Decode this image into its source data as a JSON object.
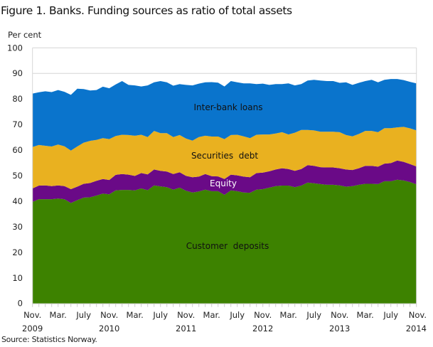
{
  "chart_data": {
    "type": "area",
    "stacked": true,
    "title": "Figure 1. Banks. Funding sources as ratio of total assets",
    "ylabel": "Per cent",
    "source": "Source: Statistics Norway.",
    "ylim": [
      0,
      100
    ],
    "y_ticks": [
      "0",
      "10",
      "20",
      "30",
      "40",
      "50",
      "60",
      "70",
      "80",
      "90",
      "100"
    ],
    "x_ticks": [
      {
        "month": "Nov.",
        "year": "2009",
        "index": 0
      },
      {
        "month": "Mar.",
        "year": "",
        "index": 4
      },
      {
        "month": "July",
        "year": "",
        "index": 8
      },
      {
        "month": "Nov.",
        "year": "2010",
        "index": 12
      },
      {
        "month": "Mar.",
        "year": "",
        "index": 16
      },
      {
        "month": "July",
        "year": "",
        "index": 20
      },
      {
        "month": "Nov.",
        "year": "2011",
        "index": 24
      },
      {
        "month": "Mar.",
        "year": "",
        "index": 28
      },
      {
        "month": "July",
        "year": "",
        "index": 32
      },
      {
        "month": "Nov.",
        "year": "2012",
        "index": 36
      },
      {
        "month": "Mar.",
        "year": "",
        "index": 40
      },
      {
        "month": "July",
        "year": "",
        "index": 44
      },
      {
        "month": "Nov.",
        "year": "2013",
        "index": 48
      },
      {
        "month": "Mar.",
        "year": "",
        "index": 52
      },
      {
        "month": "July",
        "year": "",
        "index": 56
      },
      {
        "month": "Nov.",
        "year": "2014",
        "index": 60
      }
    ],
    "x": [
      "2009-11",
      "2009-12",
      "2010-01",
      "2010-02",
      "2010-03",
      "2010-04",
      "2010-05",
      "2010-06",
      "2010-07",
      "2010-08",
      "2010-09",
      "2010-10",
      "2010-11",
      "2010-12",
      "2011-01",
      "2011-02",
      "2011-03",
      "2011-04",
      "2011-05",
      "2011-06",
      "2011-07",
      "2011-08",
      "2011-09",
      "2011-10",
      "2011-11",
      "2011-12",
      "2012-01",
      "2012-02",
      "2012-03",
      "2012-04",
      "2012-05",
      "2012-06",
      "2012-07",
      "2012-08",
      "2012-09",
      "2012-10",
      "2012-11",
      "2012-12",
      "2013-01",
      "2013-02",
      "2013-03",
      "2013-04",
      "2013-05",
      "2013-06",
      "2013-07",
      "2013-08",
      "2013-09",
      "2013-10",
      "2013-11",
      "2013-12",
      "2014-01",
      "2014-02",
      "2014-03",
      "2014-04",
      "2014-05",
      "2014-06",
      "2014-07",
      "2014-08",
      "2014-09",
      "2014-10",
      "2014-11"
    ],
    "grid": "horizontal at 90 and 100",
    "series": [
      {
        "name": "Customer  deposits",
        "color": "#3d8200",
        "label_color": "#111111",
        "values": [
          39.7,
          40.8,
          40.8,
          40.8,
          41.0,
          40.8,
          39.3,
          40.4,
          41.4,
          41.5,
          42.2,
          43.0,
          42.7,
          44.2,
          44.4,
          44.4,
          44.2,
          45.0,
          44.3,
          46.2,
          45.8,
          45.5,
          44.5,
          45.3,
          44.1,
          43.4,
          43.8,
          44.5,
          43.9,
          43.9,
          42.5,
          44.2,
          43.9,
          43.4,
          43.3,
          44.5,
          44.7,
          45.3,
          45.9,
          46.1,
          46.1,
          45.5,
          46.1,
          47.3,
          47.0,
          46.7,
          46.4,
          46.4,
          46.2,
          45.7,
          45.9,
          46.4,
          46.8,
          46.8,
          46.7,
          47.8,
          47.8,
          48.4,
          48.1,
          47.5,
          46.6
        ]
      },
      {
        "name": "Equity",
        "color": "#6a0a87",
        "label_color": "#ffffff",
        "values": [
          5.3,
          5.3,
          5.4,
          5.1,
          5.2,
          5.1,
          5.4,
          5.3,
          5.4,
          5.6,
          5.8,
          5.7,
          5.6,
          6.1,
          6.2,
          6.0,
          5.7,
          6.0,
          6.2,
          6.2,
          6.1,
          6.1,
          6.1,
          6.0,
          5.8,
          6.0,
          5.8,
          6.1,
          5.9,
          5.8,
          6.2,
          6.2,
          6.2,
          6.2,
          6.1,
          6.5,
          6.5,
          6.4,
          6.5,
          6.8,
          6.5,
          6.4,
          6.5,
          6.8,
          6.8,
          6.6,
          6.8,
          6.8,
          6.7,
          6.7,
          6.3,
          6.5,
          7.0,
          7.0,
          6.8,
          6.9,
          7.1,
          7.5,
          7.3,
          7.0,
          7.0
        ]
      },
      {
        "name": "Securities  debt",
        "color": "#e9b120",
        "label_color": "#111111",
        "values": [
          16.2,
          15.9,
          15.5,
          15.5,
          16.0,
          15.6,
          15.1,
          15.7,
          16.1,
          16.5,
          16.0,
          16.0,
          16.0,
          15.2,
          15.4,
          15.5,
          15.7,
          15.0,
          14.6,
          15.1,
          14.7,
          15.0,
          14.5,
          14.6,
          14.6,
          14.3,
          15.5,
          15.0,
          15.5,
          15.6,
          15.6,
          15.5,
          15.9,
          15.8,
          15.3,
          15.0,
          14.9,
          14.4,
          14.1,
          14.1,
          13.5,
          14.9,
          15.3,
          13.8,
          13.9,
          13.9,
          14.0,
          14.0,
          14.1,
          13.5,
          13.2,
          13.4,
          13.7,
          13.7,
          13.5,
          13.9,
          13.7,
          13.0,
          13.7,
          14.0,
          14.1
        ]
      },
      {
        "name": "Inter-bank loans",
        "color": "#0a74cc",
        "label_color": "#111111",
        "values": [
          20.9,
          20.6,
          21.3,
          21.3,
          21.3,
          21.3,
          21.8,
          22.6,
          21.0,
          19.7,
          19.5,
          20.1,
          19.9,
          20.2,
          21.0,
          19.6,
          19.7,
          18.9,
          20.2,
          19.0,
          20.4,
          19.9,
          20.1,
          19.9,
          21.0,
          21.6,
          20.9,
          20.9,
          21.3,
          21.1,
          20.6,
          21.1,
          20.5,
          20.7,
          21.4,
          19.8,
          19.9,
          19.4,
          19.3,
          18.8,
          20.0,
          18.5,
          17.9,
          19.3,
          19.8,
          20.0,
          19.8,
          19.8,
          19.3,
          20.6,
          20.1,
          20.0,
          19.5,
          20.0,
          19.5,
          18.9,
          19.2,
          18.9,
          18.3,
          18.2,
          18.4
        ]
      }
    ]
  }
}
